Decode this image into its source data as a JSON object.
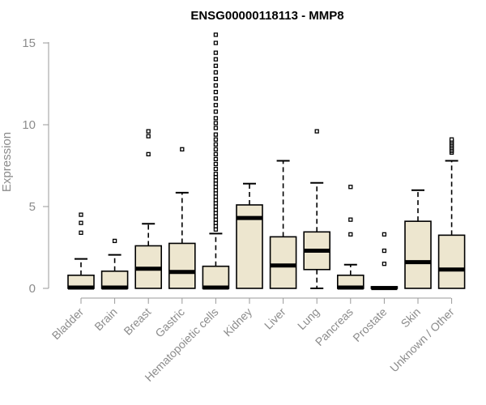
{
  "chart_data": {
    "type": "box",
    "title": "ENSG00000118113 - MMP8",
    "ylabel": "Expression",
    "xlabel": "",
    "ylim": [
      0,
      15.5
    ],
    "yticks": [
      0,
      5,
      10,
      15
    ],
    "grid": false,
    "legend": "none",
    "box_fill": "#ede6cf",
    "categories": [
      "Bladder",
      "Brain",
      "Breast",
      "Gastric",
      "Hematopoietic cells",
      "Kidney",
      "Liver",
      "Lung",
      "Pancreas",
      "Prostate",
      "Skin",
      "Unknown / Other"
    ],
    "boxes": [
      {
        "name": "Bladder",
        "min": 0,
        "q1": 0,
        "median": 0.05,
        "q3": 0.8,
        "max": 1.8,
        "outliers": [
          3.4,
          4.0,
          4.5
        ]
      },
      {
        "name": "Brain",
        "min": 0,
        "q1": 0,
        "median": 0.05,
        "q3": 1.05,
        "max": 2.05,
        "outliers": [
          2.9
        ]
      },
      {
        "name": "Breast",
        "min": 0,
        "q1": 0,
        "median": 1.2,
        "q3": 2.6,
        "max": 3.95,
        "outliers": [
          8.2,
          9.3,
          9.6
        ]
      },
      {
        "name": "Gastric",
        "min": 0,
        "q1": 0,
        "median": 1.0,
        "q3": 2.75,
        "max": 5.85,
        "outliers": [
          8.5
        ]
      },
      {
        "name": "Hematopoietic cells",
        "min": 0,
        "q1": 0,
        "median": 0.05,
        "q3": 1.35,
        "max": 3.35,
        "outliers": [
          3.6,
          3.8,
          4.0,
          4.2,
          4.4,
          4.6,
          4.8,
          5.0,
          5.2,
          5.4,
          5.6,
          5.8,
          6.0,
          6.2,
          6.4,
          6.6,
          6.8,
          7.0,
          7.3,
          7.6,
          7.9,
          8.2,
          8.5,
          8.8,
          9.1,
          9.4,
          9.8,
          10.1,
          10.4,
          10.8,
          11.2,
          11.6,
          12.0,
          12.4,
          12.8,
          13.2,
          13.6,
          14.0,
          14.4,
          15.0,
          15.5
        ]
      },
      {
        "name": "Kidney",
        "min": 0,
        "q1": 0,
        "median": 4.3,
        "q3": 5.1,
        "max": 6.4,
        "outliers": []
      },
      {
        "name": "Liver",
        "min": 0,
        "q1": 0,
        "median": 1.4,
        "q3": 3.15,
        "max": 7.8,
        "outliers": []
      },
      {
        "name": "Lung",
        "min": 0,
        "q1": 1.15,
        "median": 2.3,
        "q3": 3.45,
        "max": 6.45,
        "outliers": [
          9.6
        ]
      },
      {
        "name": "Pancreas",
        "min": 0,
        "q1": 0,
        "median": 0.05,
        "q3": 0.8,
        "max": 1.45,
        "outliers": [
          3.3,
          4.2,
          6.2
        ]
      },
      {
        "name": "Prostate",
        "min": 0,
        "q1": 0,
        "median": 0.02,
        "q3": 0.1,
        "max": 0.1,
        "outliers": [
          1.5,
          2.3,
          3.3
        ]
      },
      {
        "name": "Skin",
        "min": 0,
        "q1": 0,
        "median": 1.6,
        "q3": 4.1,
        "max": 6.0,
        "outliers": []
      },
      {
        "name": "Unknown / Other",
        "min": 0,
        "q1": 0,
        "median": 1.15,
        "q3": 3.25,
        "max": 7.8,
        "outliers": [
          8.3,
          8.4,
          8.5,
          8.6,
          8.7,
          8.8,
          8.9,
          9.0,
          9.1
        ]
      }
    ]
  }
}
